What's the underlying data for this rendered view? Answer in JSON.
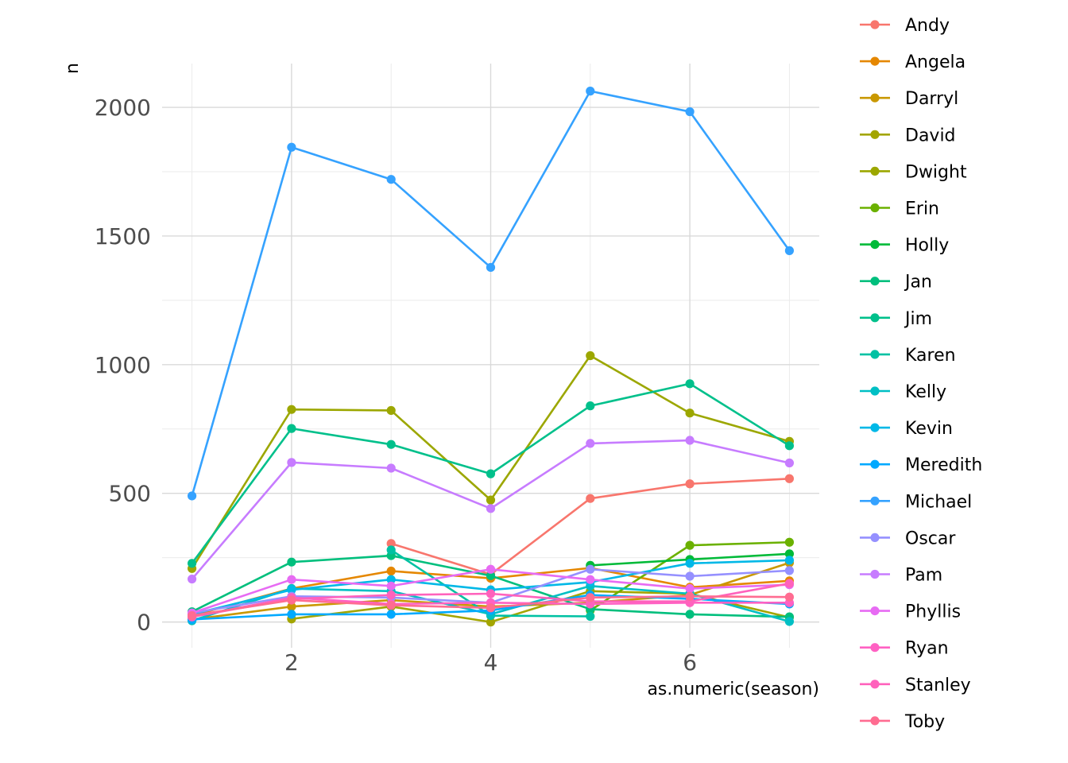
{
  "chart_data": {
    "type": "line",
    "title": "",
    "xlabel": "as.numeric(season)",
    "ylabel": "n",
    "x": [
      1,
      2,
      3,
      4,
      5,
      6,
      7
    ],
    "xlim": [
      0.7,
      7.3
    ],
    "ylim": [
      -100,
      2170
    ],
    "x_ticks": [
      2,
      4,
      6
    ],
    "y_ticks": [
      0,
      500,
      1000,
      1500,
      2000
    ],
    "x_minor": [
      1,
      3,
      5,
      7
    ],
    "y_minor": [
      250,
      750,
      1250,
      1750
    ],
    "grid": true,
    "legend_position": "right",
    "series": [
      {
        "name": "Andy",
        "color": "#F8766D",
        "values": [
          null,
          null,
          305,
          185,
          480,
          537,
          557
        ]
      },
      {
        "name": "Angela",
        "color": "#E58700",
        "values": [
          25,
          130,
          198,
          170,
          210,
          135,
          160
        ]
      },
      {
        "name": "Darryl",
        "color": "#C99800",
        "values": [
          10,
          60,
          85,
          60,
          75,
          105,
          230
        ]
      },
      {
        "name": "David",
        "color": "#A3A500",
        "values": [
          null,
          12,
          60,
          0,
          120,
          110,
          18
        ]
      },
      {
        "name": "Dwight",
        "color": "#9CA700",
        "values": [
          208,
          826,
          822,
          474,
          1035,
          812,
          702
        ]
      },
      {
        "name": "Erin",
        "color": "#6BB100",
        "values": [
          null,
          null,
          null,
          null,
          45,
          298,
          310
        ]
      },
      {
        "name": "Holly",
        "color": "#00BA38",
        "values": [
          null,
          null,
          null,
          null,
          220,
          243,
          265
        ]
      },
      {
        "name": "Jan",
        "color": "#00BF7D",
        "values": [
          40,
          233,
          258,
          180,
          50,
          30,
          20
        ]
      },
      {
        "name": "Jim",
        "color": "#00C08B",
        "values": [
          228,
          752,
          690,
          576,
          840,
          926,
          685
        ]
      },
      {
        "name": "Karen",
        "color": "#00C1A3",
        "values": [
          null,
          null,
          280,
          25,
          22,
          null,
          null
        ]
      },
      {
        "name": "Kelly",
        "color": "#00BFC4",
        "values": [
          5,
          130,
          120,
          30,
          140,
          110,
          2
        ]
      },
      {
        "name": "Kevin",
        "color": "#00B8E7",
        "values": [
          30,
          125,
          165,
          125,
          155,
          228,
          240
        ]
      },
      {
        "name": "Meredith",
        "color": "#00A9FF",
        "values": [
          10,
          30,
          30,
          45,
          105,
          90,
          70
        ]
      },
      {
        "name": "Michael",
        "color": "#35A2FF",
        "values": [
          490,
          1845,
          1720,
          1378,
          2063,
          1983,
          1443
        ]
      },
      {
        "name": "Oscar",
        "color": "#9590FF",
        "values": [
          35,
          100,
          95,
          75,
          205,
          178,
          200
        ]
      },
      {
        "name": "Pam",
        "color": "#C77CFF",
        "values": [
          167,
          620,
          598,
          441,
          694,
          706,
          618
        ]
      },
      {
        "name": "Phyllis",
        "color": "#E76BF3",
        "values": [
          35,
          165,
          140,
          205,
          165,
          130,
          145
        ]
      },
      {
        "name": "Ryan",
        "color": "#FF61C3",
        "values": [
          20,
          95,
          70,
          75,
          70,
          75,
          75
        ]
      },
      {
        "name": "Stanley",
        "color": "#FF62BC",
        "values": [
          20,
          90,
          105,
          110,
          80,
          80,
          150
        ]
      },
      {
        "name": "Toby",
        "color": "#FF6C91",
        "values": [
          25,
          85,
          65,
          55,
          95,
          100,
          97
        ]
      }
    ]
  }
}
